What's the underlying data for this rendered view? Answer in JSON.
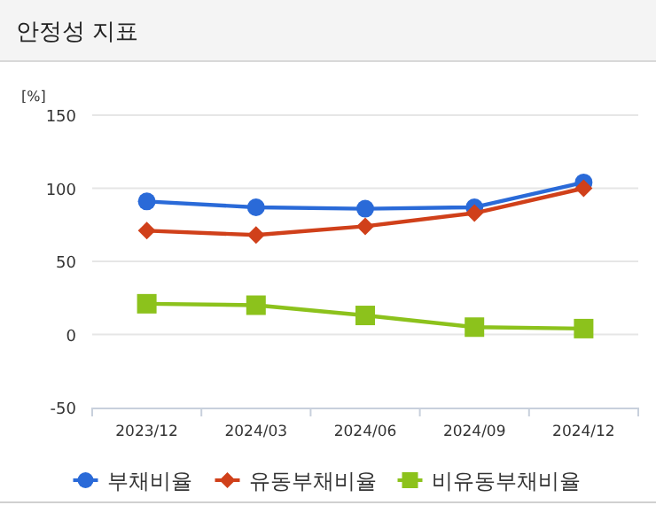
{
  "chart_data": {
    "type": "line",
    "title": "안정성 지표",
    "ylabel": "[%]",
    "categories": [
      "2023/12",
      "2024/03",
      "2024/06",
      "2024/09",
      "2024/12"
    ],
    "series": [
      {
        "name": "부채비율",
        "color": "#2a6ad8",
        "marker": "circle",
        "values": [
          91,
          87,
          86,
          87,
          104
        ]
      },
      {
        "name": "유동부채비율",
        "color": "#d0401a",
        "marker": "diamond",
        "values": [
          71,
          68,
          74,
          83,
          100
        ]
      },
      {
        "name": "비유동부채비율",
        "color": "#8cc21c",
        "marker": "square",
        "values": [
          21,
          20,
          13,
          5,
          4
        ]
      }
    ],
    "ylim": [
      -50,
      150
    ],
    "yticks": [
      -50,
      0,
      50,
      100,
      150
    ],
    "grid": "y",
    "legend": "bottom"
  }
}
